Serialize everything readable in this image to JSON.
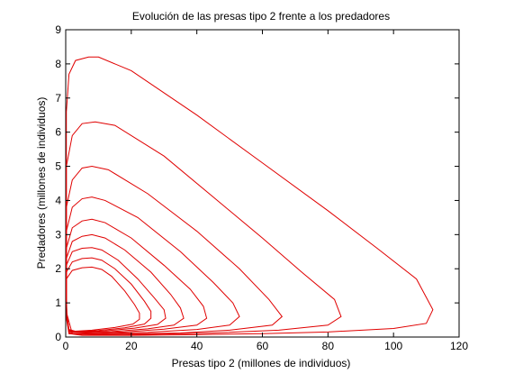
{
  "chart_data": {
    "type": "line",
    "title": "Evolución de las presas tipo 2 frente a los predadores",
    "xlabel": "Presas tipo 2 (millones de individuos)",
    "ylabel": "Predadores (millones de individuos)",
    "xlim": [
      0,
      120
    ],
    "ylim": [
      0,
      9
    ],
    "x_ticks": [
      0,
      20,
      40,
      60,
      80,
      100,
      120
    ],
    "y_ticks": [
      0,
      1,
      2,
      3,
      4,
      5,
      6,
      7,
      8,
      9
    ],
    "grid": false,
    "line_color": "#e00000",
    "series": [
      {
        "values": [
          [
            0.2,
            6.6
          ],
          [
            1,
            7.7
          ],
          [
            3,
            8.1
          ],
          [
            7,
            8.2
          ],
          [
            10,
            8.2
          ],
          [
            20,
            7.8
          ],
          [
            40,
            6.5
          ],
          [
            60,
            5.1
          ],
          [
            80,
            3.7
          ],
          [
            95,
            2.6
          ],
          [
            107,
            1.7
          ],
          [
            112,
            0.8
          ],
          [
            110,
            0.4
          ],
          [
            100,
            0.25
          ],
          [
            80,
            0.15
          ],
          [
            60,
            0.1
          ],
          [
            40,
            0.07
          ],
          [
            20,
            0.05
          ],
          [
            5,
            0.05
          ],
          [
            1,
            0.1
          ],
          [
            0.3,
            0.5
          ],
          [
            0.2,
            2
          ],
          [
            0.2,
            4.5
          ],
          [
            0.2,
            6.6
          ]
        ]
      },
      {
        "values": [
          [
            0.2,
            5
          ],
          [
            2,
            5.9
          ],
          [
            5,
            6.25
          ],
          [
            9,
            6.3
          ],
          [
            15,
            6.2
          ],
          [
            30,
            5.3
          ],
          [
            45,
            4.1
          ],
          [
            60,
            2.9
          ],
          [
            72,
            1.9
          ],
          [
            82,
            1.1
          ],
          [
            84,
            0.6
          ],
          [
            80,
            0.35
          ],
          [
            65,
            0.2
          ],
          [
            45,
            0.12
          ],
          [
            25,
            0.08
          ],
          [
            8,
            0.07
          ],
          [
            1,
            0.1
          ],
          [
            0.3,
            0.6
          ],
          [
            0.2,
            2.5
          ],
          [
            0.2,
            5
          ]
        ]
      },
      {
        "values": [
          [
            0.2,
            3.8
          ],
          [
            2,
            4.6
          ],
          [
            5,
            4.95
          ],
          [
            8,
            5
          ],
          [
            13,
            4.9
          ],
          [
            25,
            4.2
          ],
          [
            40,
            3.1
          ],
          [
            53,
            2
          ],
          [
            62,
            1.1
          ],
          [
            66,
            0.6
          ],
          [
            63,
            0.35
          ],
          [
            50,
            0.2
          ],
          [
            35,
            0.12
          ],
          [
            18,
            0.09
          ],
          [
            5,
            0.08
          ],
          [
            1,
            0.12
          ],
          [
            0.3,
            0.7
          ],
          [
            0.2,
            2.2
          ],
          [
            0.2,
            3.8
          ]
        ]
      },
      {
        "values": [
          [
            0.2,
            3.1
          ],
          [
            2,
            3.8
          ],
          [
            5,
            4.05
          ],
          [
            8,
            4.1
          ],
          [
            12,
            4
          ],
          [
            22,
            3.5
          ],
          [
            35,
            2.5
          ],
          [
            45,
            1.6
          ],
          [
            51,
            1
          ],
          [
            53,
            0.6
          ],
          [
            50,
            0.35
          ],
          [
            40,
            0.22
          ],
          [
            25,
            0.14
          ],
          [
            10,
            0.1
          ],
          [
            2,
            0.1
          ],
          [
            0.3,
            0.7
          ],
          [
            0.2,
            1.8
          ],
          [
            0.2,
            3.1
          ]
        ]
      },
      {
        "values": [
          [
            0.2,
            2.6
          ],
          [
            2,
            3.2
          ],
          [
            5,
            3.4
          ],
          [
            8,
            3.45
          ],
          [
            12,
            3.35
          ],
          [
            20,
            2.9
          ],
          [
            30,
            2.1
          ],
          [
            38,
            1.4
          ],
          [
            42,
            0.9
          ],
          [
            43,
            0.55
          ],
          [
            40,
            0.35
          ],
          [
            30,
            0.23
          ],
          [
            18,
            0.15
          ],
          [
            6,
            0.12
          ],
          [
            1,
            0.15
          ],
          [
            0.3,
            0.7
          ],
          [
            0.2,
            1.6
          ],
          [
            0.2,
            2.6
          ]
        ]
      },
      {
        "values": [
          [
            0.2,
            2.3
          ],
          [
            2,
            2.8
          ],
          [
            5,
            2.95
          ],
          [
            8,
            3
          ],
          [
            12,
            2.9
          ],
          [
            18,
            2.55
          ],
          [
            26,
            1.9
          ],
          [
            32,
            1.25
          ],
          [
            35,
            0.85
          ],
          [
            36,
            0.55
          ],
          [
            33,
            0.35
          ],
          [
            25,
            0.24
          ],
          [
            14,
            0.16
          ],
          [
            5,
            0.13
          ],
          [
            1,
            0.16
          ],
          [
            0.3,
            0.7
          ],
          [
            0.2,
            1.5
          ],
          [
            0.2,
            2.3
          ]
        ]
      },
      {
        "values": [
          [
            0.2,
            2.1
          ],
          [
            2,
            2.5
          ],
          [
            5,
            2.6
          ],
          [
            8,
            2.62
          ],
          [
            11,
            2.55
          ],
          [
            16,
            2.25
          ],
          [
            22,
            1.7
          ],
          [
            27,
            1.15
          ],
          [
            30,
            0.8
          ],
          [
            30.5,
            0.55
          ],
          [
            28,
            0.37
          ],
          [
            21,
            0.26
          ],
          [
            12,
            0.18
          ],
          [
            4,
            0.14
          ],
          [
            1,
            0.18
          ],
          [
            0.3,
            0.7
          ],
          [
            0.2,
            1.4
          ],
          [
            0.2,
            2.1
          ]
        ]
      },
      {
        "values": [
          [
            0.2,
            1.9
          ],
          [
            2,
            2.2
          ],
          [
            5,
            2.3
          ],
          [
            8,
            2.32
          ],
          [
            11,
            2.25
          ],
          [
            15,
            2
          ],
          [
            20,
            1.55
          ],
          [
            24,
            1.05
          ],
          [
            26,
            0.75
          ],
          [
            26,
            0.55
          ],
          [
            24,
            0.38
          ],
          [
            18,
            0.27
          ],
          [
            10,
            0.19
          ],
          [
            3,
            0.15
          ],
          [
            1,
            0.2
          ],
          [
            0.3,
            0.7
          ],
          [
            0.2,
            1.3
          ],
          [
            0.2,
            1.9
          ]
        ]
      },
      {
        "values": [
          [
            0.2,
            1.7
          ],
          [
            2,
            1.95
          ],
          [
            5,
            2.03
          ],
          [
            8,
            2.05
          ],
          [
            11,
            1.98
          ],
          [
            14,
            1.78
          ],
          [
            18,
            1.35
          ],
          [
            21,
            0.95
          ],
          [
            22.5,
            0.7
          ],
          [
            22.5,
            0.52
          ],
          [
            20.5,
            0.38
          ],
          [
            15,
            0.28
          ],
          [
            8,
            0.2
          ],
          [
            3,
            0.17
          ],
          [
            1,
            0.22
          ],
          [
            0.3,
            0.65
          ],
          [
            0.2,
            1.2
          ],
          [
            0.2,
            1.7
          ]
        ]
      }
    ]
  }
}
